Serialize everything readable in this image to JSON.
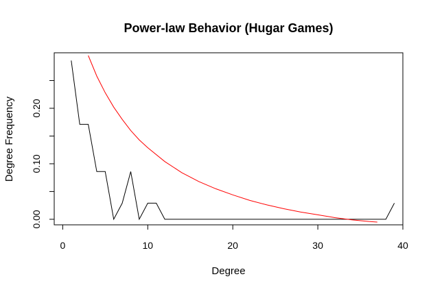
{
  "chart_data": {
    "type": "line",
    "title": "Power-law Behavior (Hugar Games)",
    "xlabel": "Degree",
    "ylabel": "Degree Frequency",
    "xlim": [
      -1,
      40
    ],
    "ylim": [
      -0.01,
      0.3
    ],
    "x_ticks": [
      0,
      10,
      20,
      30,
      40
    ],
    "x_tick_labels": [
      "0",
      "10",
      "20",
      "30",
      "40"
    ],
    "y_ticks": [
      0.0,
      0.05,
      0.1,
      0.15,
      0.2,
      0.25
    ],
    "y_tick_labels": [
      "0.00",
      "",
      "0.10",
      "",
      "0.20",
      ""
    ],
    "grid": false,
    "legend": "none",
    "series": [
      {
        "color": "#000000",
        "x": [
          1,
          2,
          3,
          4,
          5,
          6,
          7,
          8,
          9,
          10,
          11,
          12,
          13,
          14,
          15,
          16,
          17,
          18,
          19,
          20,
          21,
          22,
          23,
          24,
          25,
          26,
          27,
          28,
          29,
          30,
          31,
          32,
          33,
          34,
          35,
          36,
          37,
          38,
          39
        ],
        "y": [
          0.286,
          0.171,
          0.171,
          0.086,
          0.086,
          0,
          0.029,
          0.086,
          0,
          0.029,
          0.029,
          0,
          0,
          0,
          0,
          0,
          0,
          0,
          0,
          0,
          0,
          0,
          0,
          0,
          0,
          0,
          0,
          0,
          0,
          0,
          0,
          0,
          0,
          0,
          0,
          0,
          0,
          0,
          0.029
        ]
      },
      {
        "color": "#ff0000",
        "x": [
          3,
          4,
          5,
          6,
          7,
          8,
          9,
          10,
          12,
          14,
          16,
          18,
          20,
          22,
          24,
          26,
          28,
          30,
          32,
          34,
          36,
          37
        ],
        "y": [
          0.295,
          0.258,
          0.228,
          0.202,
          0.18,
          0.16,
          0.143,
          0.129,
          0.104,
          0.084,
          0.068,
          0.055,
          0.044,
          0.034,
          0.026,
          0.019,
          0.013,
          0.008,
          0.003,
          -0.001,
          -0.004,
          -0.005
        ]
      }
    ]
  }
}
